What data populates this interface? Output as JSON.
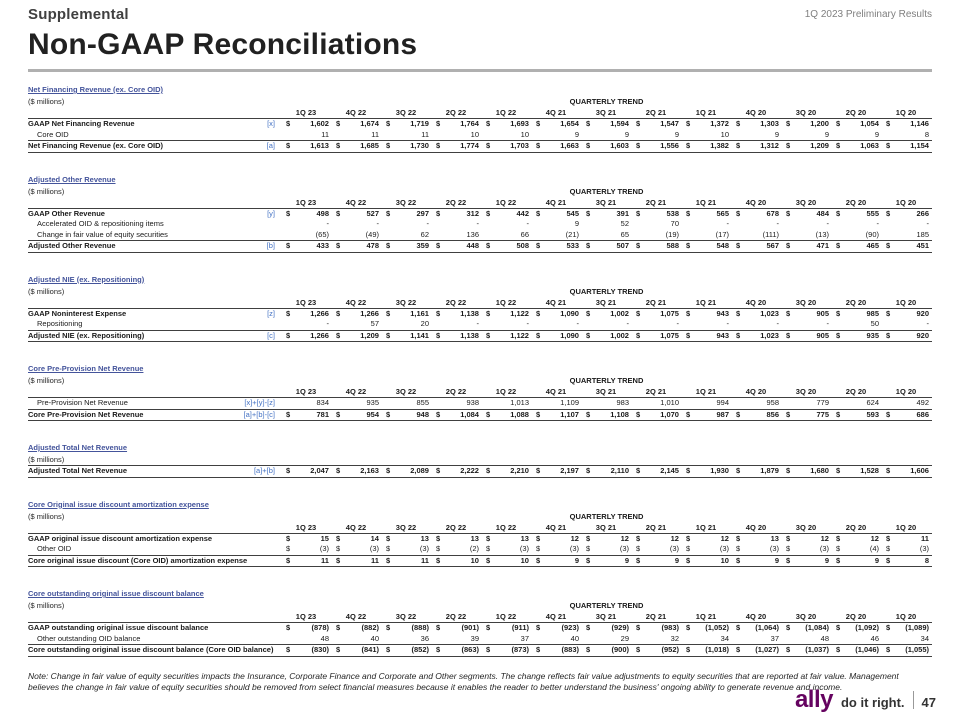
{
  "header": {
    "eyebrow": "Supplemental",
    "top_right": "1Q 2023 Preliminary Results",
    "title": "Non-GAAP Reconciliations"
  },
  "labels": {
    "millions": "($ millions)",
    "quarterly_trend": "QUARTERLY TREND"
  },
  "quarters": [
    "1Q 23",
    "4Q 22",
    "3Q 22",
    "2Q 22",
    "1Q 22",
    "4Q 21",
    "3Q 21",
    "2Q 21",
    "1Q 21",
    "4Q 20",
    "3Q 20",
    "2Q 20",
    "1Q 20"
  ],
  "tables": [
    {
      "id": "net-financing-revenue",
      "title": "Net Financing Revenue (ex. Core OID)",
      "show_quarters": true,
      "rows": [
        {
          "label": "GAAP Net Financing Revenue",
          "ref": "[x]",
          "dollar": true,
          "style": "bold",
          "values": [
            "1,602",
            "1,674",
            "1,719",
            "1,764",
            "1,693",
            "1,654",
            "1,594",
            "1,547",
            "1,372",
            "1,303",
            "1,200",
            "1,054",
            "1,146"
          ]
        },
        {
          "label": "Core OID",
          "ref": "",
          "dollar": false,
          "style": "indent",
          "values": [
            "11",
            "11",
            "11",
            "10",
            "10",
            "9",
            "9",
            "9",
            "10",
            "9",
            "9",
            "9",
            "8"
          ]
        },
        {
          "label": "Net Financing Revenue (ex. Core OID)",
          "ref": "[a]",
          "dollar": true,
          "style": "total",
          "values": [
            "1,613",
            "1,685",
            "1,730",
            "1,774",
            "1,703",
            "1,663",
            "1,603",
            "1,556",
            "1,382",
            "1,312",
            "1,209",
            "1,063",
            "1,154"
          ]
        }
      ]
    },
    {
      "id": "adjusted-other-revenue",
      "title": "Adjusted Other Revenue",
      "show_quarters": true,
      "rows": [
        {
          "label": "GAAP Other Revenue",
          "ref": "[y]",
          "dollar": true,
          "style": "bold",
          "values": [
            "498",
            "527",
            "297",
            "312",
            "442",
            "545",
            "391",
            "538",
            "565",
            "678",
            "484",
            "555",
            "266"
          ]
        },
        {
          "label": "Accelerated OID & repositioning items",
          "ref": "",
          "dollar": false,
          "style": "indent",
          "values": [
            "-",
            "-",
            "-",
            "-",
            "-",
            "9",
            "52",
            "70",
            "-",
            "-",
            "-",
            "-",
            "-"
          ]
        },
        {
          "label": "Change in fair value of equity securities",
          "ref": "",
          "dollar": false,
          "style": "indent",
          "values": [
            "(65)",
            "(49)",
            "62",
            "136",
            "66",
            "(21)",
            "65",
            "(19)",
            "(17)",
            "(111)",
            "(13)",
            "(90)",
            "185"
          ]
        },
        {
          "label": "Adjusted Other Revenue",
          "ref": "[b]",
          "dollar": true,
          "style": "total",
          "values": [
            "433",
            "478",
            "359",
            "448",
            "508",
            "533",
            "507",
            "588",
            "548",
            "567",
            "471",
            "465",
            "451"
          ]
        }
      ]
    },
    {
      "id": "adjusted-nie",
      "title": "Adjusted NIE (ex. Repositioning)",
      "show_quarters": true,
      "rows": [
        {
          "label": "GAAP Noninterest Expense",
          "ref": "[z]",
          "dollar": true,
          "style": "bold",
          "values": [
            "1,266",
            "1,266",
            "1,161",
            "1,138",
            "1,122",
            "1,090",
            "1,002",
            "1,075",
            "943",
            "1,023",
            "905",
            "985",
            "920"
          ]
        },
        {
          "label": "Repositioning",
          "ref": "",
          "dollar": false,
          "style": "indent",
          "values": [
            "-",
            "57",
            "20",
            "-",
            "-",
            "-",
            "-",
            "-",
            "-",
            "-",
            "-",
            "50",
            "-"
          ]
        },
        {
          "label": "Adjusted NIE (ex. Repositioning)",
          "ref": "[c]",
          "dollar": true,
          "style": "total",
          "values": [
            "1,266",
            "1,209",
            "1,141",
            "1,138",
            "1,122",
            "1,090",
            "1,002",
            "1,075",
            "943",
            "1,023",
            "905",
            "935",
            "920"
          ]
        }
      ]
    },
    {
      "id": "core-ppnr",
      "title": "Core Pre-Provision Net Revenue",
      "show_quarters": true,
      "rows": [
        {
          "label": "Pre-Provision Net Revenue",
          "ref": "[x]+[y]-[z]",
          "dollar": false,
          "style": "indent",
          "values": [
            "834",
            "935",
            "855",
            "938",
            "1,013",
            "1,109",
            "983",
            "1,010",
            "994",
            "958",
            "779",
            "624",
            "492"
          ]
        },
        {
          "label": "Core Pre-Provision Net Revenue",
          "ref": "[a]+[b]-[c]",
          "dollar": true,
          "style": "total",
          "values": [
            "781",
            "954",
            "948",
            "1,084",
            "1,088",
            "1,107",
            "1,108",
            "1,070",
            "987",
            "856",
            "775",
            "593",
            "686"
          ]
        }
      ]
    },
    {
      "id": "adjusted-total-net-revenue",
      "title": "Adjusted Total Net Revenue",
      "show_quarters": false,
      "rows": [
        {
          "label": "Adjusted Total Net Revenue",
          "ref": "[a]+[b]",
          "dollar": true,
          "style": "total",
          "values": [
            "2,047",
            "2,163",
            "2,089",
            "2,222",
            "2,210",
            "2,197",
            "2,110",
            "2,145",
            "1,930",
            "1,879",
            "1,680",
            "1,528",
            "1,606"
          ]
        }
      ]
    },
    {
      "id": "core-oid-amortization",
      "title": "Core Original issue discount amortization expense",
      "show_quarters": true,
      "rows": [
        {
          "label": "GAAP original issue discount amortization expense",
          "ref": "",
          "dollar": true,
          "style": "bold",
          "values": [
            "15",
            "14",
            "13",
            "13",
            "13",
            "12",
            "12",
            "12",
            "12",
            "13",
            "12",
            "12",
            "11"
          ]
        },
        {
          "label": "Other OID",
          "ref": "",
          "dollar": true,
          "style": "indent",
          "values": [
            "(3)",
            "(3)",
            "(3)",
            "(2)",
            "(3)",
            "(3)",
            "(3)",
            "(3)",
            "(3)",
            "(3)",
            "(3)",
            "(4)",
            "(3)"
          ]
        },
        {
          "label": "Core original issue discount (Core OID) amortization expense",
          "ref": "",
          "dollar": true,
          "style": "total",
          "values": [
            "11",
            "11",
            "11",
            "10",
            "10",
            "9",
            "9",
            "9",
            "10",
            "9",
            "9",
            "9",
            "8"
          ]
        }
      ]
    },
    {
      "id": "core-oid-balance",
      "title": "Core outstanding original issue discount balance",
      "show_quarters": true,
      "rows": [
        {
          "label": "GAAP outstanding original issue discount balance",
          "ref": "",
          "dollar": true,
          "style": "bold",
          "values": [
            "(878)",
            "(882)",
            "(888)",
            "(901)",
            "(911)",
            "(923)",
            "(929)",
            "(983)",
            "(1,052)",
            "(1,064)",
            "(1,084)",
            "(1,092)",
            "(1,089)"
          ]
        },
        {
          "label": "Other outstanding OID balance",
          "ref": "",
          "dollar": false,
          "style": "indent",
          "values": [
            "48",
            "40",
            "36",
            "39",
            "37",
            "40",
            "29",
            "32",
            "34",
            "37",
            "48",
            "46",
            "34"
          ]
        },
        {
          "label": "Core outstanding original issue discount balance (Core OID balance)",
          "ref": "",
          "dollar": true,
          "style": "total",
          "values": [
            "(830)",
            "(841)",
            "(852)",
            "(863)",
            "(873)",
            "(883)",
            "(900)",
            "(952)",
            "(1,018)",
            "(1,027)",
            "(1,037)",
            "(1,046)",
            "(1,055)"
          ]
        }
      ]
    }
  ],
  "note": "Note: Change in fair value of equity securities impacts the Insurance, Corporate Finance and Corporate and Other segments. The change reflects fair value adjustments to equity securities that are reported at fair value. Management believes the change in fair value of equity securities should be removed from select financial measures because it enables the reader to better understand the business' ongoing ability to generate revenue and income.",
  "footer": {
    "logo_text": "ally",
    "logo_tagline": "do it right.",
    "page_number": "47"
  }
}
